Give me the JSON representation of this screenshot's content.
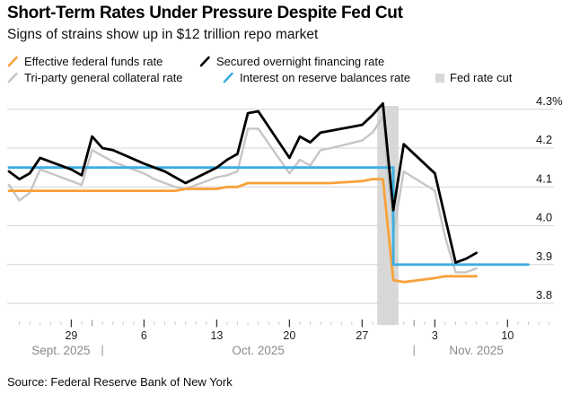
{
  "header": {
    "title": "Short-Term Rates Under Pressure Despite Fed Cut",
    "subtitle": "Signs of strains show up in $12 trillion repo market"
  },
  "legend": {
    "items": [
      {
        "key": "effr",
        "label": "Effective federal funds rate",
        "color": "#F7A13A",
        "swatch": "line"
      },
      {
        "key": "sofr",
        "label": "Secured overnight financing rate",
        "color": "#000000",
        "swatch": "line"
      },
      {
        "key": "triparty",
        "label": "Tri-party general collateral rate",
        "color": "#C6C6C6",
        "swatch": "line"
      },
      {
        "key": "iorb",
        "label": "Interest on reserve balances rate",
        "color": "#3BAFE3",
        "swatch": "line"
      },
      {
        "key": "fedcut",
        "label": "Fed rate cut",
        "color": "#D8D8D8",
        "swatch": "box"
      }
    ]
  },
  "chart_data": {
    "type": "line",
    "title": "Short-Term Rates Under Pressure Despite Fed Cut",
    "subtitle": "Signs of strains show up in $12 trillion repo market",
    "source": "Source: Federal Reserve Bank of New York",
    "unit": "%",
    "x_range": [
      "2025-09-23",
      "2025-11-14"
    ],
    "ylim": [
      3.75,
      4.33
    ],
    "grid": true,
    "legend_position": "top",
    "y_axis": {
      "ticks": [
        {
          "label": "4.3%",
          "value": 4.3
        },
        {
          "label": "4.2",
          "value": 4.2
        },
        {
          "label": "4.1",
          "value": 4.1
        },
        {
          "label": "4.0",
          "value": 4.0
        },
        {
          "label": "3.9",
          "value": 3.9
        },
        {
          "label": "3.8",
          "value": 3.8
        }
      ]
    },
    "x_axis": {
      "week_ticks": [
        {
          "label": "29",
          "date": "2025-09-29"
        },
        {
          "label": "6",
          "date": "2025-10-06"
        },
        {
          "label": "13",
          "date": "2025-10-13"
        },
        {
          "label": "20",
          "date": "2025-10-20"
        },
        {
          "label": "27",
          "date": "2025-10-27"
        },
        {
          "label": "3",
          "date": "2025-11-03"
        },
        {
          "label": "10",
          "date": "2025-11-10"
        }
      ],
      "month_labels": [
        {
          "label": "Sept. 2025",
          "center_date": "2025-09-28"
        },
        {
          "label": "Oct. 2025",
          "center_date": "2025-10-17"
        },
        {
          "label": "Nov. 2025",
          "center_date": "2025-11-07"
        }
      ],
      "separators": [
        "2025-10-02",
        "2025-11-01"
      ],
      "month_boundary_ticks": [
        "2025-10-01",
        "2025-11-01"
      ]
    },
    "band": {
      "label": "Fed rate cut",
      "start": "2025-10-29",
      "end": "2025-10-30",
      "color": "#D8D8D8"
    },
    "series": [
      {
        "name": "Tri-party general collateral rate",
        "key": "triparty",
        "color": "#C6C6C6",
        "width": 2.4,
        "points": [
          [
            "2025-09-23",
            4.105
          ],
          [
            "2025-09-24",
            4.065
          ],
          [
            "2025-09-25",
            4.085
          ],
          [
            "2025-09-26",
            4.145
          ],
          [
            "2025-09-29",
            4.115
          ],
          [
            "2025-09-30",
            4.105
          ],
          [
            "2025-10-01",
            4.195
          ],
          [
            "2025-10-02",
            4.18
          ],
          [
            "2025-10-03",
            4.165
          ],
          [
            "2025-10-06",
            4.135
          ],
          [
            "2025-10-07",
            4.12
          ],
          [
            "2025-10-08",
            4.11
          ],
          [
            "2025-10-09",
            4.1
          ],
          [
            "2025-10-10",
            4.095
          ],
          [
            "2025-10-13",
            4.125
          ],
          [
            "2025-10-14",
            4.13
          ],
          [
            "2025-10-15",
            4.14
          ],
          [
            "2025-10-16",
            4.25
          ],
          [
            "2025-10-17",
            4.25
          ],
          [
            "2025-10-20",
            4.135
          ],
          [
            "2025-10-21",
            4.17
          ],
          [
            "2025-10-22",
            4.155
          ],
          [
            "2025-10-23",
            4.195
          ],
          [
            "2025-10-24",
            4.2
          ],
          [
            "2025-10-27",
            4.22
          ],
          [
            "2025-10-28",
            4.24
          ],
          [
            "2025-10-29",
            4.28
          ],
          [
            "2025-10-30",
            3.98
          ],
          [
            "2025-10-31",
            4.14
          ],
          [
            "2025-11-03",
            4.09
          ],
          [
            "2025-11-04",
            3.97
          ],
          [
            "2025-11-05",
            3.88
          ],
          [
            "2025-11-06",
            3.88
          ],
          [
            "2025-11-07",
            3.89
          ]
        ]
      },
      {
        "name": "Effective federal funds rate",
        "key": "effr",
        "color": "#F7A13A",
        "width": 2.8,
        "points": [
          [
            "2025-09-23",
            4.09
          ],
          [
            "2025-09-24",
            4.09
          ],
          [
            "2025-09-25",
            4.09
          ],
          [
            "2025-09-26",
            4.09
          ],
          [
            "2025-09-29",
            4.09
          ],
          [
            "2025-09-30",
            4.09
          ],
          [
            "2025-10-01",
            4.09
          ],
          [
            "2025-10-02",
            4.09
          ],
          [
            "2025-10-03",
            4.09
          ],
          [
            "2025-10-06",
            4.09
          ],
          [
            "2025-10-07",
            4.09
          ],
          [
            "2025-10-08",
            4.09
          ],
          [
            "2025-10-09",
            4.09
          ],
          [
            "2025-10-10",
            4.095
          ],
          [
            "2025-10-13",
            4.095
          ],
          [
            "2025-10-14",
            4.1
          ],
          [
            "2025-10-15",
            4.1
          ],
          [
            "2025-10-16",
            4.11
          ],
          [
            "2025-10-17",
            4.11
          ],
          [
            "2025-10-20",
            4.11
          ],
          [
            "2025-10-21",
            4.11
          ],
          [
            "2025-10-22",
            4.11
          ],
          [
            "2025-10-23",
            4.11
          ],
          [
            "2025-10-24",
            4.11
          ],
          [
            "2025-10-27",
            4.115
          ],
          [
            "2025-10-28",
            4.12
          ],
          [
            "2025-10-29",
            4.12
          ],
          [
            "2025-10-30",
            3.86
          ],
          [
            "2025-10-31",
            3.855
          ],
          [
            "2025-11-03",
            3.865
          ],
          [
            "2025-11-04",
            3.87
          ],
          [
            "2025-11-05",
            3.87
          ],
          [
            "2025-11-06",
            3.87
          ],
          [
            "2025-11-07",
            3.87
          ]
        ]
      },
      {
        "name": "Interest on reserve balances rate",
        "key": "iorb",
        "color": "#3BAFE3",
        "width": 2.8,
        "points": [
          [
            "2025-09-23",
            4.15
          ],
          [
            "2025-10-30",
            4.15
          ],
          [
            "2025-10-30",
            3.9
          ],
          [
            "2025-11-12",
            3.9
          ]
        ]
      },
      {
        "name": "Secured overnight financing rate",
        "key": "sofr",
        "color": "#000000",
        "width": 2.8,
        "points": [
          [
            "2025-09-23",
            4.14
          ],
          [
            "2025-09-24",
            4.12
          ],
          [
            "2025-09-25",
            4.135
          ],
          [
            "2025-09-26",
            4.175
          ],
          [
            "2025-09-29",
            4.145
          ],
          [
            "2025-09-30",
            4.13
          ],
          [
            "2025-10-01",
            4.23
          ],
          [
            "2025-10-02",
            4.2
          ],
          [
            "2025-10-03",
            4.195
          ],
          [
            "2025-10-06",
            4.16
          ],
          [
            "2025-10-07",
            4.15
          ],
          [
            "2025-10-08",
            4.14
          ],
          [
            "2025-10-09",
            4.125
          ],
          [
            "2025-10-10",
            4.11
          ],
          [
            "2025-10-13",
            4.15
          ],
          [
            "2025-10-14",
            4.17
          ],
          [
            "2025-10-15",
            4.185
          ],
          [
            "2025-10-16",
            4.29
          ],
          [
            "2025-10-17",
            4.295
          ],
          [
            "2025-10-20",
            4.175
          ],
          [
            "2025-10-21",
            4.23
          ],
          [
            "2025-10-22",
            4.215
          ],
          [
            "2025-10-23",
            4.24
          ],
          [
            "2025-10-24",
            4.245
          ],
          [
            "2025-10-27",
            4.26
          ],
          [
            "2025-10-28",
            4.285
          ],
          [
            "2025-10-29",
            4.315
          ],
          [
            "2025-10-30",
            4.04
          ],
          [
            "2025-10-31",
            4.21
          ],
          [
            "2025-11-03",
            4.135
          ],
          [
            "2025-11-04",
            4.02
          ],
          [
            "2025-11-05",
            3.905
          ],
          [
            "2025-11-06",
            3.915
          ],
          [
            "2025-11-07",
            3.93
          ]
        ]
      }
    ]
  }
}
